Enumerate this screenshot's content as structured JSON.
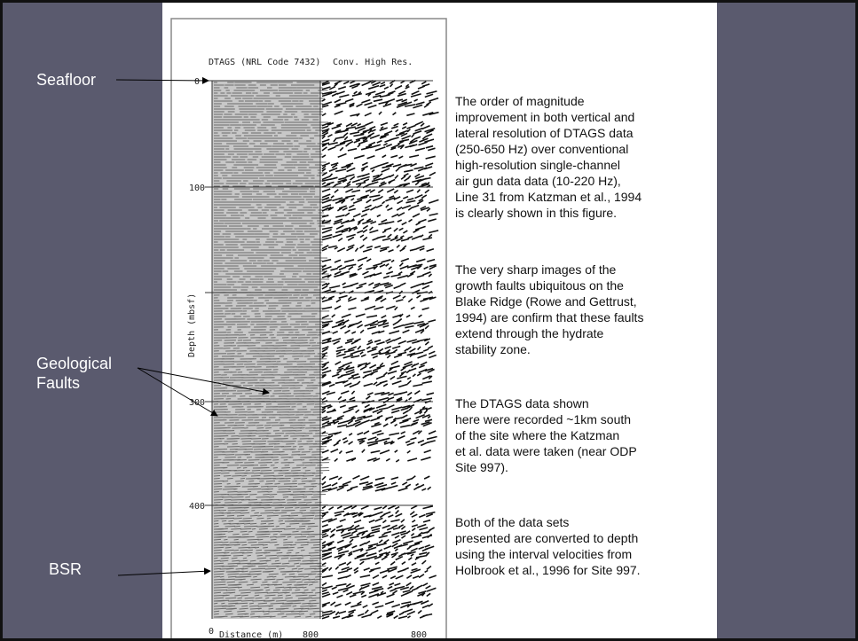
{
  "labels": {
    "seafloor": "Seafloor",
    "faults": [
      "Geological",
      "Faults"
    ],
    "bsr": "BSR"
  },
  "figure": {
    "left_title": "DTAGS (NRL Code 7432)",
    "right_title": "Conv. High Res.",
    "depth_ticks": [
      "0",
      "100",
      "300",
      "400"
    ],
    "y_label": "Depth (mbsf)",
    "x_label_left": "0",
    "x_label": "Distance (m)",
    "x_label_mid": "800",
    "x_label_right": "800"
  },
  "paragraphs": [
    [
      "The order of magnitude",
      "improvement in both vertical and",
      "lateral resolution of DTAGS data",
      "(250-650 Hz) over conventional",
      "high-resolution single-channel",
      "air gun data data (10-220 Hz),",
      "Line 31 from Katzman et al., 1994",
      "is clearly shown in this figure."
    ],
    [
      "The very sharp images of the",
      "growth faults ubiquitous on the",
      "Blake Ridge (Rowe and Gettrust,",
      "1994) are confirm that these faults",
      "extend through the hydrate",
      "stability zone."
    ],
    [
      "The DTAGS data shown",
      "here were recorded ~1km south",
      "of the site where the Katzman",
      "et al. data were taken (near ODP",
      "Site 997)."
    ],
    [
      "Both of the data sets",
      "presented are converted to depth",
      "using the interval velocities from",
      "Holbrook et al., 1996 for Site 997."
    ]
  ]
}
